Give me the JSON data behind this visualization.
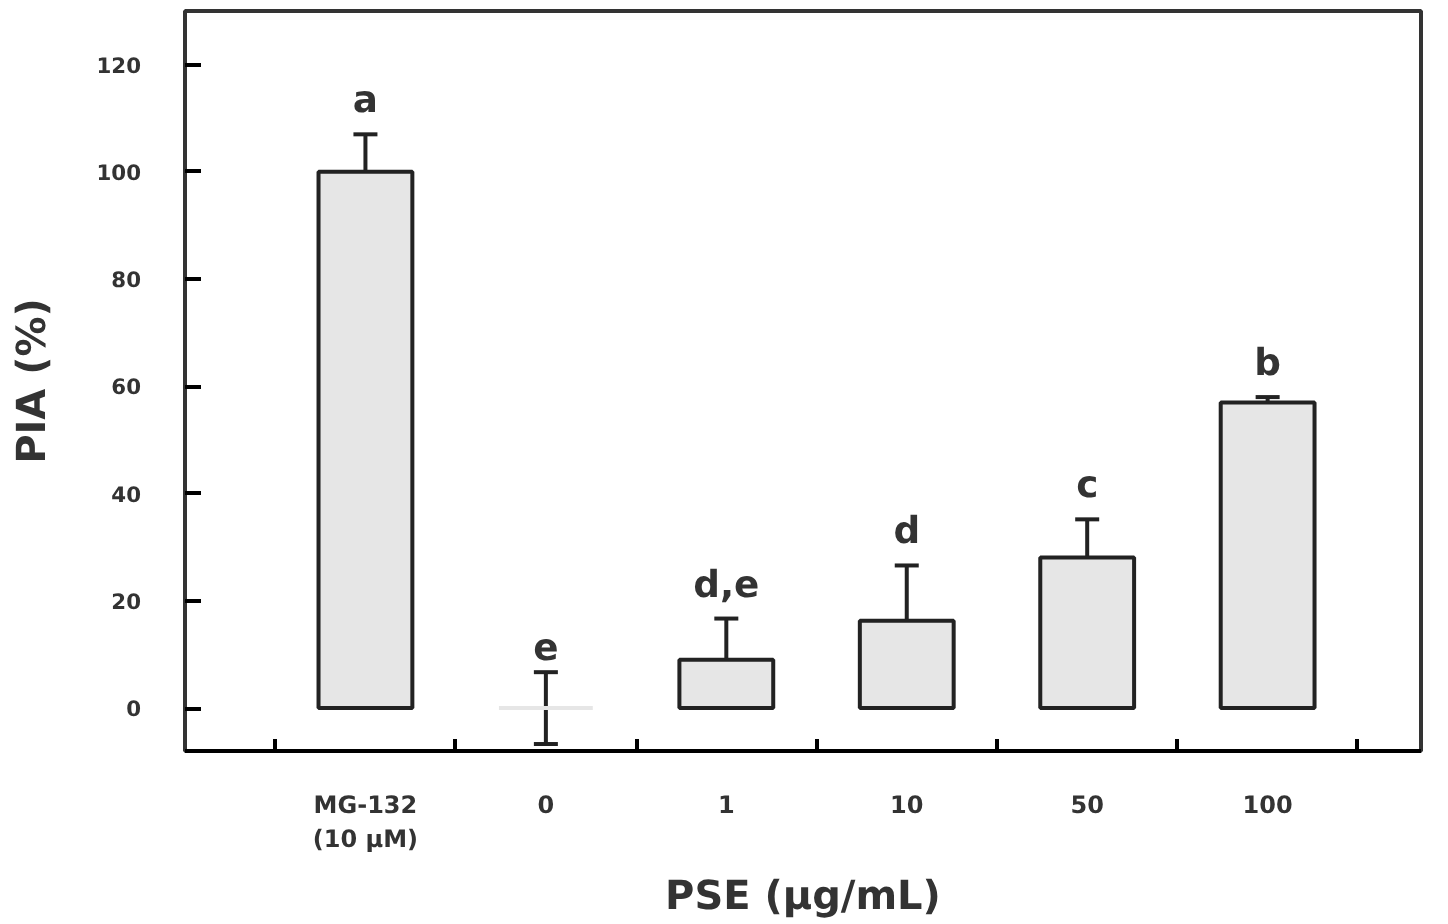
{
  "chart_data": {
    "type": "bar",
    "xlabel": "PSE (μg/mL)",
    "ylabel": "PIA (%)",
    "categories": [
      "MG-132\n(10 μM)",
      "0",
      "1",
      "10",
      "50",
      "100"
    ],
    "values": [
      100,
      0,
      9,
      16.3,
      28.1,
      57
    ],
    "errors": [
      7,
      6.7,
      7.7,
      10.3,
      7.1,
      1
    ],
    "color": "#e6e6e6",
    "ylim": [
      -8,
      130
    ],
    "yticks": [
      0,
      20,
      40,
      60,
      80,
      100,
      120
    ],
    "annotations": [
      "a",
      "e",
      "d,e",
      "d",
      "c",
      "b"
    ]
  }
}
